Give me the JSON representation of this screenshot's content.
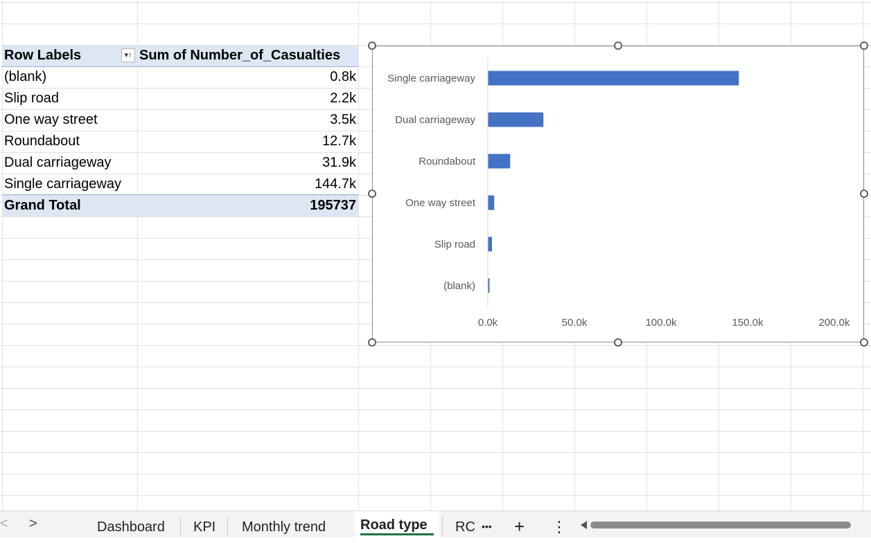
{
  "pivot": {
    "header_label": "Row Labels",
    "header_value": "Sum of Number_of_Casualties",
    "filter_icon": "filter-sort-icon",
    "rows": [
      {
        "label": "(blank)",
        "value": "0.8k"
      },
      {
        "label": "Slip road",
        "value": "2.2k"
      },
      {
        "label": "One way street",
        "value": "3.5k"
      },
      {
        "label": "Roundabout",
        "value": "12.7k"
      },
      {
        "label": "Dual carriageway",
        "value": "31.9k"
      },
      {
        "label": "Single carriageway",
        "value": "144.7k"
      }
    ],
    "total_label": "Grand Total",
    "total_value": "195737"
  },
  "chart_data": {
    "type": "bar",
    "orientation": "horizontal",
    "categories": [
      "Single carriageway",
      "Dual carriageway",
      "Roundabout",
      "One way street",
      "Slip road",
      "(blank)"
    ],
    "values": [
      144700,
      31900,
      12700,
      3500,
      2200,
      800
    ],
    "xlim": [
      0,
      200000
    ],
    "x_ticks": [
      {
        "value": 0,
        "label": "0.0k"
      },
      {
        "value": 50000,
        "label": "50.0k"
      },
      {
        "value": 100000,
        "label": "100.0k"
      },
      {
        "value": 150000,
        "label": "150.0k"
      },
      {
        "value": 200000,
        "label": "200.0k"
      }
    ],
    "bar_color": "#4472c4",
    "grid": false,
    "legend": "none"
  },
  "tabs": {
    "prev_icon": "chevron-left-icon",
    "next_icon": "chevron-right-icon",
    "prev_glyph": "<",
    "next_glyph": ">",
    "items": [
      "Dashboard",
      "KPI",
      "Monthly trend",
      "Road type",
      "RC"
    ],
    "active": "Road type",
    "more_glyph": "•••",
    "add_glyph": "+",
    "menu_glyph": "⋮"
  }
}
